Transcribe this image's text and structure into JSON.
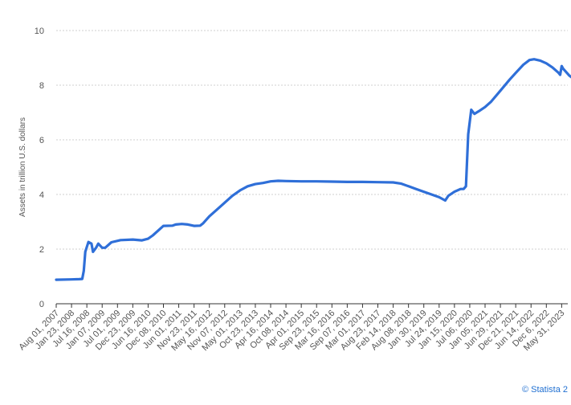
{
  "chart_data": {
    "type": "line",
    "title": "",
    "ylabel": "Assets in trillion U.S. dollars",
    "xlabel": "",
    "ylim": [
      0,
      10
    ],
    "yticks": [
      0,
      2,
      4,
      6,
      8,
      10
    ],
    "grid": true,
    "colors": {
      "line": "#2f6fd8",
      "grid": "#cfcfcf",
      "axis": "#333333",
      "text": "#555555"
    },
    "categories": [
      "Aug 01, 2007",
      "Jan 23, 2008",
      "Jul 16, 2008",
      "Jan 07, 2009",
      "Jul 01, 2009",
      "Dec 23, 2009",
      "Jun 16, 2010",
      "Dec 08, 2010",
      "Jun 01, 2011",
      "Nov 23, 2011",
      "May 16, 2012",
      "Nov 07, 2012",
      "May 01, 2013",
      "Oct 23, 2013",
      "Apr 16, 2014",
      "Oct 08, 2014",
      "Apr 01, 2015",
      "Sep 23, 2015",
      "Mar 16, 2016",
      "Sep 07, 2016",
      "Mar 01, 2017",
      "Aug 23, 2017",
      "Feb 14, 2018",
      "Aug 08, 2018",
      "Jan 30, 2019",
      "Jul 24, 2019",
      "Jan 15, 2020",
      "Jul 06, 2020",
      "Jan 05, 2021",
      "Jun 29, 2021",
      "Dec 21, 2021",
      "Jun 14, 2022",
      "Dec 6, 2022",
      "May 31, 2023"
    ],
    "series": [
      {
        "values": [
          [
            0.0,
            0.88
          ],
          [
            1.0,
            0.89
          ],
          [
            1.5,
            0.9
          ],
          [
            1.7,
            0.91
          ],
          [
            1.8,
            1.2
          ],
          [
            1.9,
            1.9
          ],
          [
            2.1,
            2.26
          ],
          [
            2.3,
            2.2
          ],
          [
            2.4,
            1.9
          ],
          [
            2.6,
            2.05
          ],
          [
            2.75,
            2.2
          ],
          [
            3.0,
            2.05
          ],
          [
            3.2,
            2.05
          ],
          [
            3.6,
            2.25
          ],
          [
            4.2,
            2.33
          ],
          [
            5.0,
            2.35
          ],
          [
            5.6,
            2.32
          ],
          [
            6.0,
            2.38
          ],
          [
            6.3,
            2.5
          ],
          [
            6.7,
            2.7
          ],
          [
            7.0,
            2.85
          ],
          [
            7.6,
            2.86
          ],
          [
            7.8,
            2.9
          ],
          [
            8.2,
            2.92
          ],
          [
            8.6,
            2.9
          ],
          [
            9.0,
            2.85
          ],
          [
            9.4,
            2.86
          ],
          [
            9.6,
            2.95
          ],
          [
            10.0,
            3.2
          ],
          [
            10.5,
            3.45
          ],
          [
            11.0,
            3.7
          ],
          [
            11.5,
            3.95
          ],
          [
            12.0,
            4.15
          ],
          [
            12.5,
            4.3
          ],
          [
            13.0,
            4.38
          ],
          [
            13.5,
            4.42
          ],
          [
            14.0,
            4.48
          ],
          [
            14.5,
            4.5
          ],
          [
            15.0,
            4.49
          ],
          [
            16.0,
            4.48
          ],
          [
            17.0,
            4.48
          ],
          [
            18.0,
            4.47
          ],
          [
            19.0,
            4.46
          ],
          [
            20.0,
            4.46
          ],
          [
            21.0,
            4.45
          ],
          [
            22.0,
            4.44
          ],
          [
            22.5,
            4.4
          ],
          [
            23.0,
            4.3
          ],
          [
            23.5,
            4.2
          ],
          [
            24.0,
            4.1
          ],
          [
            24.5,
            4.0
          ],
          [
            25.0,
            3.9
          ],
          [
            25.4,
            3.78
          ],
          [
            25.6,
            3.95
          ],
          [
            26.0,
            4.1
          ],
          [
            26.4,
            4.2
          ],
          [
            26.6,
            4.2
          ],
          [
            26.75,
            4.3
          ],
          [
            26.9,
            6.2
          ],
          [
            27.1,
            7.1
          ],
          [
            27.3,
            6.95
          ],
          [
            27.6,
            7.05
          ],
          [
            28.0,
            7.2
          ],
          [
            28.4,
            7.4
          ],
          [
            29.0,
            7.8
          ],
          [
            29.6,
            8.2
          ],
          [
            30.0,
            8.45
          ],
          [
            30.5,
            8.75
          ],
          [
            30.9,
            8.92
          ],
          [
            31.2,
            8.95
          ],
          [
            31.6,
            8.9
          ],
          [
            32.0,
            8.8
          ],
          [
            32.4,
            8.65
          ],
          [
            32.8,
            8.45
          ],
          [
            32.9,
            8.38
          ],
          [
            33.0,
            8.7
          ],
          [
            33.1,
            8.6
          ],
          [
            33.5,
            8.35
          ],
          [
            34.0,
            8.15
          ],
          [
            34.4,
            7.85
          ]
        ]
      }
    ]
  },
  "credit": "© Statista 2"
}
